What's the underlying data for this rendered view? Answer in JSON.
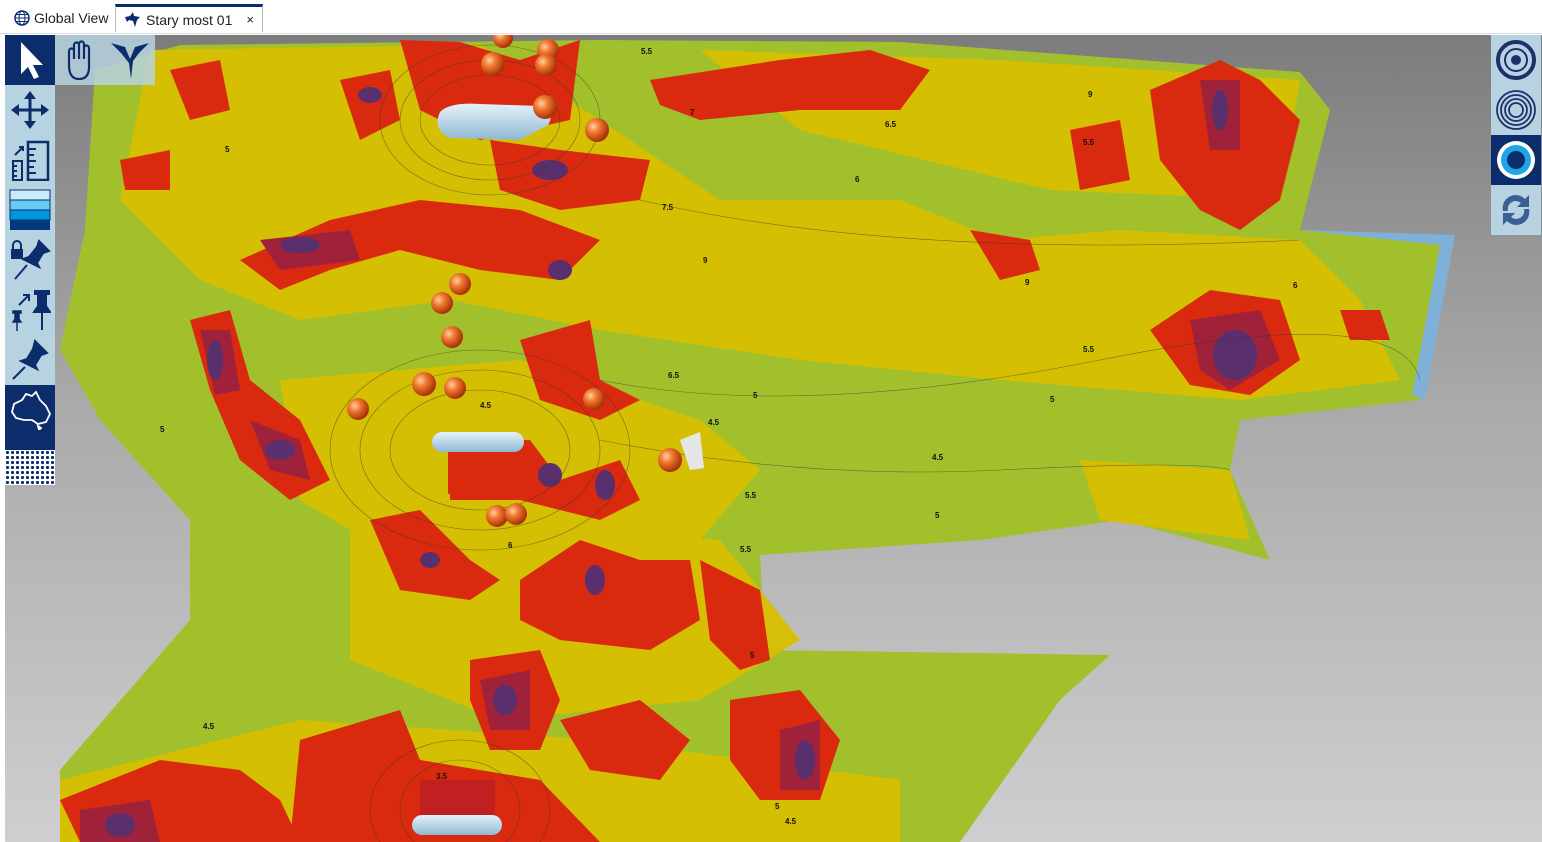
{
  "tabs": [
    {
      "label": "Global View",
      "icon": "globe-icon",
      "active": false
    },
    {
      "label": "Stary most 01",
      "icon": "shark-icon",
      "active": true,
      "close": "×"
    }
  ],
  "left_toolbar": [
    "select-arrow-icon",
    "pan-move-icon",
    "scale-ruler-icon",
    "depth-layers-icon",
    "lock-pin-icon",
    "resize-pin-icon",
    "pin-icon",
    "australia-map-icon",
    "dither-pattern-icon"
  ],
  "top_toolbar": [
    "hand-icon",
    "pelican-icon"
  ],
  "right_toolbar": [
    "target-icon",
    "concentric-rings-icon",
    "sonar-point-icon",
    "refresh-icon"
  ],
  "depth_labels": [
    "5.5",
    "7",
    "9",
    "6.5",
    "5.5",
    "6",
    "7.5",
    "9",
    "5",
    "6",
    "9",
    "5.5",
    "5",
    "5",
    "4.5",
    "4.5",
    "5.5",
    "5",
    "5.5",
    "5",
    "4.5",
    "4.5",
    "5",
    "3.5",
    "4.5",
    "6",
    "6.5",
    "5"
  ],
  "colors": {
    "accent": "#0b2d6b",
    "deep": "#5a2f6e",
    "red": "#d92a10",
    "yellow": "#d8bf00",
    "green": "#9fbe2a",
    "light_blue": "#b7d2e0"
  }
}
